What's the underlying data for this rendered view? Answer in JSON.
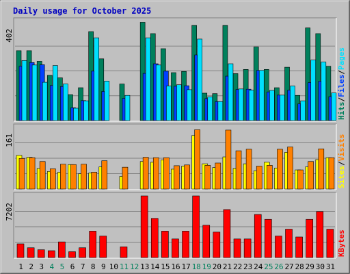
{
  "title": "Daily usage for October 2025",
  "colors": {
    "background": "#c0c0c0",
    "title": "#0000c0",
    "hits": "#00805c",
    "files": "#0040ff",
    "pages": "#00e0ff",
    "visits": "#ff8000",
    "sites": "#ffff00",
    "kbytes": "#ff0000",
    "weekday_label": "#000000",
    "weekend_label": "#00805c"
  },
  "chart_data": [
    {
      "type": "bar",
      "name": "hits-files-pages",
      "ymax_label": "402",
      "ylim": [
        0,
        402
      ],
      "legend": [
        "Hits",
        "/",
        "Files",
        "/",
        "Pages"
      ],
      "legend_colors": [
        "#00805c",
        "#000000",
        "#0040ff",
        "#000000",
        "#00e0ff"
      ],
      "categories": [
        "1",
        "2",
        "3",
        "4",
        "5",
        "6",
        "7",
        "8",
        "9",
        "10",
        "11",
        "12",
        "13",
        "14",
        "15",
        "16",
        "17",
        "18",
        "19",
        "20",
        "21",
        "22",
        "23",
        "24",
        "25",
        "26",
        "27",
        "28",
        "29",
        "30",
        "31"
      ],
      "series": [
        {
          "name": "Hits",
          "values": [
            283,
            283,
            240,
            183,
            173,
            105,
            133,
            360,
            250,
            0,
            148,
            0,
            398,
            352,
            291,
            194,
            199,
            385,
            111,
            109,
            385,
            190,
            207,
            298,
            207,
            133,
            216,
            102,
            375,
            352,
            220
          ]
        },
        {
          "name": "Files",
          "values": [
            220,
            235,
            226,
            142,
            138,
            52,
            81,
            200,
            118,
            0,
            90,
            0,
            191,
            230,
            200,
            139,
            141,
            266,
            89,
            77,
            180,
            126,
            127,
            203,
            116,
            103,
            123,
            68,
            154,
            159,
            97
          ]
        },
        {
          "name": "Pages",
          "values": [
            243,
            225,
            155,
            223,
            148,
            50,
            80,
            335,
            160,
            0,
            102,
            0,
            335,
            225,
            140,
            145,
            125,
            330,
            96,
            77,
            230,
            128,
            123,
            203,
            122,
            103,
            140,
            80,
            245,
            237,
            112
          ]
        }
      ]
    },
    {
      "type": "bar",
      "name": "sites-visits",
      "ymax_label": "161",
      "ylim": [
        0,
        161
      ],
      "legend": [
        "Sites",
        "/",
        "Visits"
      ],
      "legend_colors": [
        "#ffff00",
        "#000000",
        "#ff8000"
      ],
      "categories": [
        "1",
        "2",
        "3",
        "4",
        "5",
        "6",
        "7",
        "8",
        "9",
        "10",
        "11",
        "12",
        "13",
        "14",
        "15",
        "16",
        "17",
        "18",
        "19",
        "20",
        "21",
        "22",
        "23",
        "24",
        "25",
        "26",
        "27",
        "28",
        "29",
        "30",
        "31"
      ],
      "series": [
        {
          "name": "Sites",
          "values": [
            88,
            83,
            54,
            46,
            44,
            64,
            40,
            42,
            58,
            0,
            33,
            0,
            72,
            70,
            76,
            52,
            60,
            140,
            66,
            56,
            84,
            54,
            66,
            48,
            70,
            55,
            96,
            50,
            58,
            77,
            82
          ]
        },
        {
          "name": "Visits",
          "values": [
            80,
            82,
            72,
            53,
            65,
            64,
            65,
            44,
            74,
            0,
            57,
            0,
            83,
            82,
            82,
            61,
            63,
            155,
            62,
            68,
            154,
            100,
            104,
            60,
            62,
            104,
            110,
            50,
            72,
            105,
            82
          ]
        }
      ]
    },
    {
      "type": "bar",
      "name": "kbytes",
      "ymax_label": "7202",
      "ylim": [
        0,
        7202
      ],
      "legend": [
        "KBytes"
      ],
      "legend_colors": [
        "#ff0000"
      ],
      "categories": [
        "1",
        "2",
        "3",
        "4",
        "5",
        "6",
        "7",
        "8",
        "9",
        "10",
        "11",
        "12",
        "13",
        "14",
        "15",
        "16",
        "17",
        "18",
        "19",
        "20",
        "21",
        "22",
        "23",
        "24",
        "25",
        "26",
        "27",
        "28",
        "29",
        "30",
        "31"
      ],
      "series": [
        {
          "name": "KBytes",
          "values": [
            1602,
            1144,
            915,
            801,
            1831,
            687,
            1144,
            3089,
            2517,
            0,
            1258,
            0,
            7202,
            4577,
            3089,
            2174,
            3089,
            7202,
            3776,
            2974,
            5607,
            2174,
            2174,
            5035,
            4463,
            2517,
            3317,
            2403,
            4463,
            5379,
            3317
          ]
        }
      ]
    }
  ],
  "x_labels": [
    "1",
    "2",
    "3",
    "4",
    "5",
    "6",
    "7",
    "8",
    "9",
    "10",
    "11",
    "12",
    "13",
    "14",
    "15",
    "16",
    "17",
    "18",
    "19",
    "20",
    "21",
    "22",
    "23",
    "24",
    "25",
    "26",
    "27",
    "28",
    "29",
    "30",
    "31"
  ],
  "weekend_days": [
    "4",
    "5",
    "11",
    "12",
    "18",
    "19",
    "25",
    "26"
  ]
}
